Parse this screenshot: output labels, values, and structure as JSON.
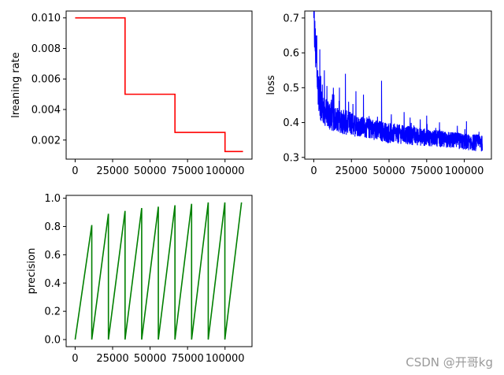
{
  "chart_data": [
    {
      "id": "lr",
      "type": "line",
      "color": "#ff0000",
      "title": "",
      "xlabel": "",
      "ylabel": "lreaning rate",
      "xlim": [
        -6000,
        118000
      ],
      "ylim": [
        0.00075,
        0.01045
      ],
      "xticks": [
        0,
        25000,
        50000,
        75000,
        100000
      ],
      "xtick_labels": [
        "0",
        "25000",
        "50000",
        "75000",
        "100000"
      ],
      "yticks": [
        0.002,
        0.004,
        0.006,
        0.008,
        0.01
      ],
      "ytick_labels": [
        "0.002",
        "0.004",
        "0.006",
        "0.008",
        "0.010"
      ],
      "series": [
        {
          "name": "learning rate",
          "x": [
            0,
            33300,
            33300,
            66600,
            66600,
            100000,
            100000,
            112000
          ],
          "y": [
            0.01,
            0.01,
            0.005,
            0.005,
            0.0025,
            0.0025,
            0.00125,
            0.00125
          ]
        }
      ]
    },
    {
      "id": "loss",
      "type": "line",
      "color": "#0000ff",
      "title": "",
      "xlabel": "",
      "ylabel": "loss",
      "xlim": [
        -6000,
        118000
      ],
      "ylim": [
        0.295,
        0.72
      ],
      "xticks": [
        0,
        25000,
        50000,
        75000,
        100000
      ],
      "xtick_labels": [
        "0",
        "25000",
        "50000",
        "75000",
        "100000"
      ],
      "yticks": [
        0.3,
        0.4,
        0.5,
        0.6,
        0.7
      ],
      "ytick_labels": [
        "0.3",
        "0.4",
        "0.5",
        "0.6",
        "0.7"
      ],
      "series": [
        {
          "name": "loss",
          "x": [
            0,
            500,
            1000,
            1500,
            2000,
            2500,
            3000,
            3500,
            4000,
            5000,
            6000,
            7000,
            8000,
            10000,
            12000,
            15000,
            18000,
            21000,
            25000,
            30000,
            35000,
            40000,
            45000,
            50000,
            60000,
            70000,
            80000,
            90000,
            100000,
            112000
          ],
          "y": [
            0.7,
            0.66,
            0.62,
            0.58,
            0.55,
            0.52,
            0.5,
            0.48,
            0.46,
            0.45,
            0.44,
            0.43,
            0.43,
            0.42,
            0.415,
            0.41,
            0.405,
            0.4,
            0.395,
            0.39,
            0.385,
            0.38,
            0.375,
            0.37,
            0.365,
            0.36,
            0.355,
            0.35,
            0.345,
            0.34
          ],
          "noise_band": [
            0.15,
            0.12,
            0.12,
            0.11,
            0.1,
            0.1,
            0.09,
            0.09,
            0.08,
            0.08,
            0.08,
            0.07,
            0.07,
            0.07,
            0.07,
            0.06,
            0.06,
            0.06,
            0.06,
            0.05,
            0.05,
            0.05,
            0.05,
            0.05,
            0.045,
            0.045,
            0.04,
            0.04,
            0.04,
            0.04
          ],
          "spikes": [
            {
              "x": 2000,
              "y": 0.65
            },
            {
              "x": 4000,
              "y": 0.61
            },
            {
              "x": 7000,
              "y": 0.55
            },
            {
              "x": 21000,
              "y": 0.54
            },
            {
              "x": 13000,
              "y": 0.5
            },
            {
              "x": 45000,
              "y": 0.52
            },
            {
              "x": 28000,
              "y": 0.49
            },
            {
              "x": 33000,
              "y": 0.48
            },
            {
              "x": 60000,
              "y": 0.43
            },
            {
              "x": 75000,
              "y": 0.42
            }
          ]
        }
      ]
    },
    {
      "id": "precision",
      "type": "line",
      "color": "#008000",
      "title": "",
      "xlabel": "",
      "ylabel": "precision",
      "xlim": [
        -6000,
        118000
      ],
      "ylim": [
        -0.05,
        1.02
      ],
      "xticks": [
        0,
        25000,
        50000,
        75000,
        100000
      ],
      "xtick_labels": [
        "0",
        "25000",
        "50000",
        "75000",
        "100000"
      ],
      "yticks": [
        0.0,
        0.2,
        0.4,
        0.6,
        0.8,
        1.0
      ],
      "ytick_labels": [
        "0.0",
        "0.2",
        "0.4",
        "0.6",
        "0.8",
        "1.0"
      ],
      "series": [
        {
          "name": "precision",
          "x": [
            0,
            11100,
            11100,
            22200,
            22200,
            33300,
            33300,
            44400,
            44400,
            55500,
            55500,
            66600,
            66600,
            77700,
            77700,
            88800,
            88800,
            99900,
            99900,
            111000
          ],
          "y": [
            0.0,
            0.81,
            0.0,
            0.89,
            0.0,
            0.91,
            0.0,
            0.93,
            0.0,
            0.94,
            0.0,
            0.95,
            0.0,
            0.96,
            0.0,
            0.97,
            0.0,
            0.97,
            0.0,
            0.97
          ]
        }
      ]
    }
  ],
  "watermark": "CSDN @开哥kg"
}
